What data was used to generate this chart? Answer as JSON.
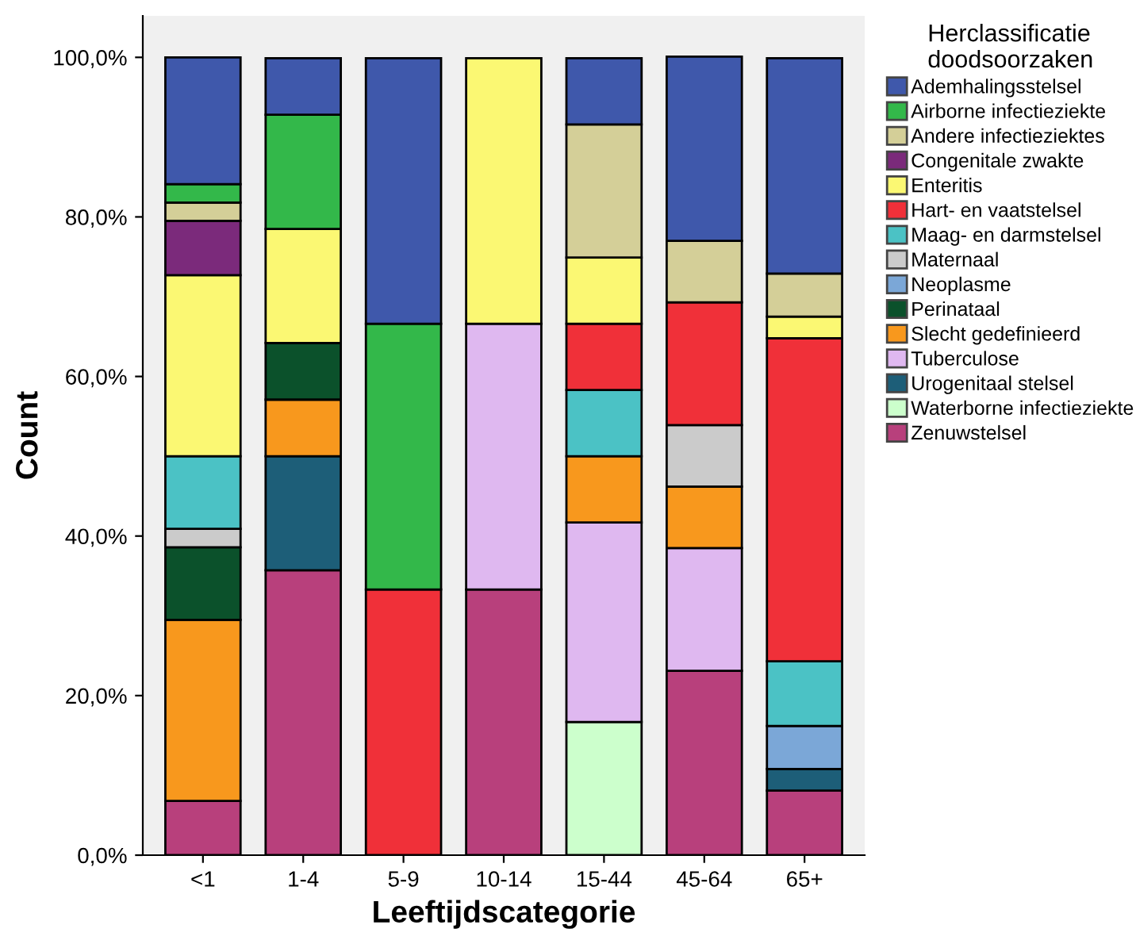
{
  "chart_data": {
    "type": "bar",
    "stacked": true,
    "xlabel": "Leeftijdscategorie",
    "ylabel": "Count",
    "legend_title": "Herclassificatie\ndoodsoorzaken",
    "legend": "right",
    "categories": [
      "<1",
      "1-4",
      "5-9",
      "10-14",
      "15-44",
      "45-64",
      "65+"
    ],
    "ylim": [
      0,
      105.2
    ],
    "yticks": [
      {
        "value": 0,
        "label": "0,0%"
      },
      {
        "value": 20,
        "label": "20,0%"
      },
      {
        "value": 40,
        "label": "40,0%"
      },
      {
        "value": 60,
        "label": "60,0%"
      },
      {
        "value": 80,
        "label": "80,0%"
      },
      {
        "value": 100,
        "label": "100,0%"
      }
    ],
    "series": [
      {
        "name": "Zenuwstelsel",
        "color": "#b8407c",
        "values": [
          6.8,
          35.7,
          null,
          33.3,
          null,
          23.1,
          8.1
        ]
      },
      {
        "name": "Waterborne infectieziekte",
        "color": "#ccffcc",
        "values": [
          null,
          null,
          null,
          null,
          16.7,
          null,
          null
        ]
      },
      {
        "name": "Urogenitaal stelsel",
        "color": "#1d5e78",
        "values": [
          null,
          14.3,
          null,
          null,
          null,
          null,
          2.7
        ]
      },
      {
        "name": "Tuberculose",
        "color": "#dfb8f0",
        "values": [
          null,
          null,
          null,
          33.3,
          25.0,
          15.4,
          null
        ]
      },
      {
        "name": "Slecht gedefinieerd",
        "color": "#f8981d",
        "values": [
          22.7,
          7.1,
          null,
          null,
          8.3,
          7.7,
          null
        ]
      },
      {
        "name": "Perinataal",
        "color": "#0b512b",
        "values": [
          9.1,
          7.1,
          null,
          null,
          null,
          null,
          null
        ]
      },
      {
        "name": "Neoplasme",
        "color": "#7ba7d7",
        "values": [
          null,
          null,
          null,
          null,
          null,
          null,
          5.4
        ]
      },
      {
        "name": "Maternaal",
        "color": "#cbcbcb",
        "values": [
          2.3,
          null,
          null,
          null,
          null,
          7.7,
          null
        ]
      },
      {
        "name": "Maag- en darmstelsel",
        "color": "#4bc2c5",
        "values": [
          9.1,
          null,
          null,
          null,
          8.3,
          null,
          8.1
        ]
      },
      {
        "name": "Hart- en vaatstelsel",
        "color": "#f03039",
        "values": [
          null,
          null,
          33.3,
          null,
          8.3,
          15.4,
          40.5
        ]
      },
      {
        "name": "Enteritis",
        "color": "#fbf873",
        "values": [
          22.7,
          14.3,
          null,
          33.3,
          8.3,
          null,
          2.7
        ]
      },
      {
        "name": "Congenitale zwakte",
        "color": "#7b2a7b",
        "values": [
          6.8,
          null,
          null,
          null,
          null,
          null,
          null
        ]
      },
      {
        "name": "Andere infectieziektes",
        "color": "#d4cf98",
        "values": [
          2.3,
          null,
          null,
          null,
          16.7,
          7.7,
          5.4
        ]
      },
      {
        "name": "Airborne infectieziekte",
        "color": "#33b84a",
        "values": [
          2.3,
          14.3,
          33.3,
          null,
          null,
          null,
          null
        ]
      },
      {
        "name": "Ademhalingsstelsel",
        "color": "#3f58ab",
        "values": [
          15.9,
          7.1,
          33.3,
          null,
          8.3,
          23.1,
          27.0
        ]
      }
    ]
  }
}
